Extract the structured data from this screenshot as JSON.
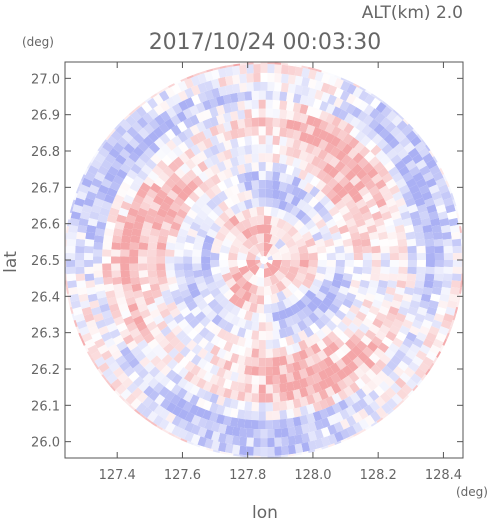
{
  "header": {
    "altitude_label": "ALT(km)  2.0",
    "timestamp": "2017/10/24  00:03:30",
    "y_unit": "(deg)",
    "x_unit": "(deg)"
  },
  "chart_data": {
    "type": "heatmap",
    "title": "2017/10/24  00:03:30",
    "subtitle": "ALT(km)  2.0",
    "xlabel": "lon",
    "ylabel": "lat",
    "x_unit": "(deg)",
    "y_unit": "(deg)",
    "xlim": [
      127.24,
      128.46
    ],
    "ylim": [
      25.955,
      27.045
    ],
    "x_ticks": [
      "127.4",
      "127.6",
      "127.8",
      "128.0",
      "128.2",
      "128.4"
    ],
    "y_ticks": [
      "26.0",
      "26.1",
      "26.2",
      "26.3",
      "26.4",
      "26.5",
      "26.6",
      "26.7",
      "26.8",
      "26.9",
      "27.0"
    ],
    "radar_center": {
      "lon": 127.85,
      "lat": 26.5
    },
    "radar_range_deg": {
      "lon": 0.613,
      "lat": 0.545
    },
    "colors": {
      "positive": "#f4a6a8",
      "negative": "#aab0f4",
      "neutral": "#ffffff"
    }
  }
}
